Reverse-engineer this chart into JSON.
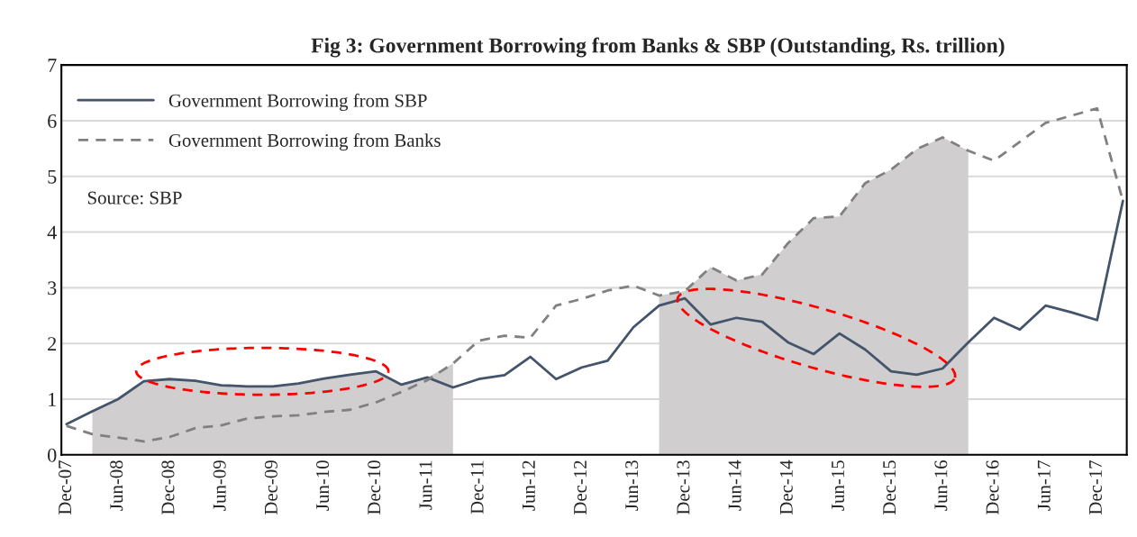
{
  "chart_data": {
    "type": "line",
    "title": "Fig 3: Government Borrowing from Banks & SBP (Outstanding, Rs. trillion)",
    "categories": [
      "Dec-07",
      null,
      "Jun-08",
      null,
      "Dec-08",
      null,
      "Jun-09",
      null,
      "Dec-09",
      null,
      "Jun-10",
      null,
      "Dec-10",
      null,
      "Jun-11",
      null,
      "Dec-11",
      null,
      "Jun-12",
      null,
      "Dec-12",
      null,
      "Jun-13",
      null,
      "Dec-13",
      null,
      "Jun-14",
      null,
      "Dec-14",
      null,
      "Jun-15",
      null,
      "Dec-15",
      null,
      "Jun-16",
      null,
      "Dec-16",
      null,
      "Jun-17",
      null,
      "Dec-17",
      null
    ],
    "series": [
      {
        "type": "area",
        "color": "#d0cecf",
        "values": [
          null,
          0.78,
          1.0,
          1.32,
          1.36,
          1.33,
          1.25,
          1.23,
          1.23,
          1.28,
          1.37,
          1.44,
          1.5,
          1.26,
          1.39,
          1.64,
          null,
          null,
          null,
          null,
          null,
          null,
          null,
          2.86,
          2.94,
          3.37,
          3.13,
          3.24,
          3.8,
          4.25,
          4.28,
          4.88,
          5.12,
          5.49,
          5.7,
          5.46,
          null,
          null,
          null,
          null,
          null,
          null
        ]
      },
      {
        "name": "Government Borrowing from SBP",
        "color": "#44546a",
        "line_style": "solid",
        "values": [
          0.55,
          0.78,
          1.0,
          1.32,
          1.36,
          1.33,
          1.25,
          1.23,
          1.23,
          1.28,
          1.37,
          1.44,
          1.5,
          1.26,
          1.39,
          1.21,
          1.36,
          1.43,
          1.76,
          1.36,
          1.57,
          1.69,
          2.29,
          2.68,
          2.81,
          2.34,
          2.46,
          2.39,
          2.02,
          1.81,
          2.18,
          1.89,
          1.5,
          1.44,
          1.55,
          2.02,
          2.46,
          2.25,
          2.68,
          2.56,
          2.42,
          4.56
        ]
      },
      {
        "name": "Government Borrowing from Banks",
        "color": "#808080",
        "line_style": "dashed",
        "values": [
          0.52,
          0.37,
          0.31,
          0.24,
          0.32,
          0.48,
          0.53,
          0.65,
          0.69,
          0.71,
          0.77,
          0.81,
          0.94,
          1.13,
          1.34,
          1.64,
          2.05,
          2.14,
          2.1,
          2.68,
          2.8,
          2.95,
          3.04,
          2.86,
          2.94,
          3.37,
          3.13,
          3.24,
          3.8,
          4.25,
          4.28,
          4.88,
          5.12,
          5.49,
          5.7,
          5.46,
          5.28,
          5.62,
          5.96,
          6.09,
          6.22,
          4.56
        ]
      }
    ],
    "ylim": [
      0,
      7
    ],
    "yticks": [
      0,
      1,
      2,
      3,
      4,
      5,
      6,
      7
    ],
    "grid": "y",
    "legend": "top left",
    "annotations": [
      "Source: SBP"
    ]
  }
}
